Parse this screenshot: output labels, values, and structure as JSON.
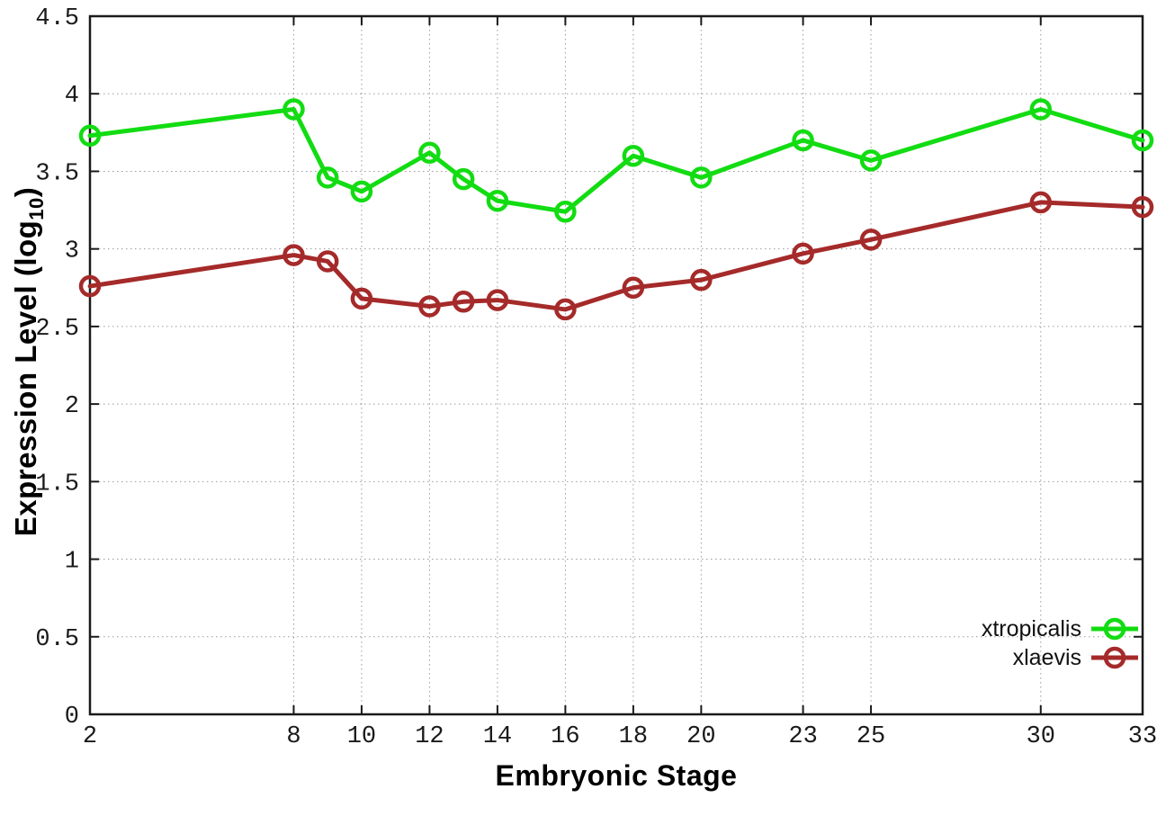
{
  "labels": {
    "xlabel": "Embryonic Stage",
    "ylabel_main": "Expression Level (log",
    "ylabel_sub": "10",
    "ylabel_close": ")"
  },
  "chart_data": {
    "type": "line",
    "title": "",
    "xlabel": "Embryonic Stage",
    "ylabel": "Expression Level (log10)",
    "xlim": [
      2,
      33
    ],
    "ylim": [
      0,
      4.5
    ],
    "grid": true,
    "grid_style": "dotted",
    "legend_position": "bottom-right",
    "x_ticks": [
      2,
      8,
      10,
      12,
      14,
      16,
      18,
      20,
      23,
      25,
      30,
      33
    ],
    "y_ticks": [
      0,
      0.5,
      1,
      1.5,
      2,
      2.5,
      3,
      3.5,
      4,
      4.5
    ],
    "x": [
      2,
      8,
      9,
      10,
      12,
      13,
      14,
      16,
      18,
      20,
      23,
      25,
      30,
      33
    ],
    "series": [
      {
        "name": "xtropicalis",
        "color": "#12dc12",
        "marker": "open-circle",
        "values": [
          3.73,
          3.9,
          3.46,
          3.37,
          3.62,
          3.45,
          3.31,
          3.24,
          3.6,
          3.46,
          3.7,
          3.57,
          3.9,
          3.7
        ]
      },
      {
        "name": "xlaevis",
        "color": "#a52a2a",
        "marker": "open-circle",
        "values": [
          2.76,
          2.96,
          2.92,
          2.68,
          2.63,
          2.66,
          2.67,
          2.61,
          2.75,
          2.8,
          2.97,
          3.06,
          3.3,
          3.27
        ]
      }
    ],
    "frame_color": "#1a1a1a",
    "grid_color": "#9a9a9a"
  }
}
